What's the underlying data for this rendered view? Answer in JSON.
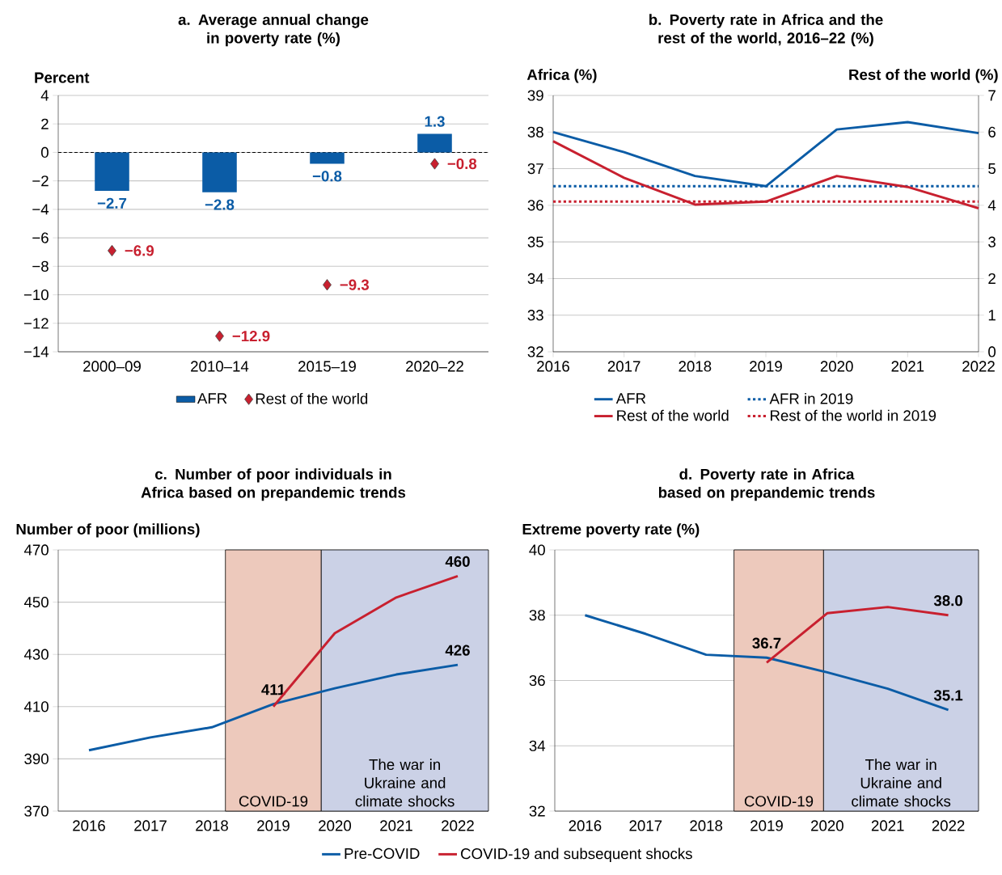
{
  "chart_data": [
    {
      "type": "bar",
      "title": "a. Average annual change in poverty rate (%)",
      "ylabel": "Percent",
      "categories": [
        "2000–09",
        "2010–14",
        "2015–19",
        "2020–22"
      ],
      "series": [
        {
          "name": "AFR",
          "color": "#0b5ca6",
          "values": [
            -2.7,
            -2.8,
            -0.8,
            1.3
          ],
          "value_labels": [
            "−2.7",
            "−2.8",
            "−0.8",
            "1.3"
          ]
        },
        {
          "name": "Rest of the world",
          "type": "scatter",
          "marker": "diamond",
          "color": "#c8202f",
          "values": [
            -6.9,
            -12.9,
            -9.3,
            -0.8
          ],
          "value_labels": [
            "−6.9",
            "−12.9",
            "−9.3",
            "−0.8"
          ]
        }
      ],
      "ylim": [
        -14,
        4
      ],
      "yticks": [
        {
          "value": -14,
          "label": "−14"
        },
        {
          "value": -12,
          "label": "−12"
        },
        {
          "value": -10,
          "label": "−10"
        },
        {
          "value": -8,
          "label": "−8"
        },
        {
          "value": -6,
          "label": "−6"
        },
        {
          "value": -4,
          "label": "−4"
        },
        {
          "value": -2,
          "label": "−2"
        },
        0,
        2,
        4
      ],
      "grid": "y",
      "legend": "bottom",
      "ref_lines": [
        {
          "axis": "y",
          "value": 0,
          "line_style": "dashed",
          "color": "#000000"
        }
      ]
    },
    {
      "type": "line",
      "title": "b. Poverty rate in Africa and the rest of the world, 2016–22 (%)",
      "ylabel": "Africa (%)",
      "y2label": "Rest of the world (%)",
      "x": [
        2016,
        2017,
        2018,
        2019,
        2020,
        2021,
        2022
      ],
      "xlim": [
        2016,
        2022
      ],
      "xticks": [
        2016,
        2017,
        2018,
        2019,
        2020,
        2021,
        2022
      ],
      "ylim": [
        32,
        39
      ],
      "yticks": [
        32,
        33,
        34,
        35,
        36,
        37,
        38,
        39
      ],
      "y2lim": [
        0,
        7
      ],
      "y2ticks": [
        0,
        1,
        2,
        3,
        4,
        5,
        6,
        7
      ],
      "grid": "y",
      "legend": "bottom",
      "series": [
        {
          "name": "AFR",
          "color": "#0b5ca6",
          "values": [
            38.0,
            37.45,
            36.8,
            36.52,
            38.07,
            38.27,
            37.97
          ]
        },
        {
          "name": "AFR in 2019",
          "color": "#0b5ca6",
          "line_style": "dotted",
          "x": [
            2016,
            2022
          ],
          "values": [
            36.52,
            36.52
          ]
        },
        {
          "name": "Rest of the world",
          "color": "#c8202f",
          "axis": "y2",
          "values": [
            5.75,
            4.75,
            4.02,
            4.1,
            4.8,
            4.5,
            3.92
          ]
        },
        {
          "name": "Rest of the world in 2019",
          "color": "#c8202f",
          "axis": "y2",
          "line_style": "dotted",
          "x": [
            2016,
            2022
          ],
          "values": [
            4.1,
            4.1
          ]
        }
      ]
    },
    {
      "type": "line",
      "title": "c. Number of poor individuals in Africa based on prepandemic trends",
      "ylabel": "Number of poor (millions)",
      "x": [
        2016,
        2017,
        2018,
        2019,
        2020,
        2021,
        2022
      ],
      "xlim": [
        2015.5,
        2022.5
      ],
      "xticks": [
        2016,
        2017,
        2018,
        2019,
        2020,
        2021,
        2022
      ],
      "ylim": [
        370,
        470
      ],
      "yticks": [
        370,
        390,
        410,
        430,
        450,
        470
      ],
      "grid": "y",
      "legend": "bottom",
      "bands": [
        {
          "axis": "x",
          "from": 2018.22,
          "to": 2019.78,
          "label": "COVID-19",
          "color": "#edc9bc"
        },
        {
          "axis": "x",
          "from": 2019.78,
          "to": 2022.5,
          "label": "The war in Ukraine and climate shocks",
          "color": "#cbd1e6"
        }
      ],
      "series": [
        {
          "name": "Pre-COVID",
          "color": "#0b5ca6",
          "values": [
            393.3,
            398.2,
            402.1,
            411,
            417,
            422.3,
            426
          ],
          "value_labels": [
            null,
            null,
            null,
            "411",
            null,
            null,
            "426"
          ]
        },
        {
          "name": "COVID-19 and subsequent shocks",
          "color": "#c8202f",
          "x": [
            2019,
            2020,
            2021,
            2022
          ],
          "values": [
            410,
            438.1,
            451.8,
            460
          ],
          "value_labels": [
            null,
            null,
            null,
            "460"
          ]
        }
      ]
    },
    {
      "type": "line",
      "title": "d. Poverty rate in Africa based on prepandemic trends",
      "ylabel": "Extreme poverty rate (%)",
      "x": [
        2016,
        2017,
        2018,
        2019,
        2020,
        2021,
        2022
      ],
      "xlim": [
        2015.5,
        2022.5
      ],
      "xticks": [
        2016,
        2017,
        2018,
        2019,
        2020,
        2021,
        2022
      ],
      "ylim": [
        32,
        40
      ],
      "yticks": [
        32,
        34,
        36,
        38,
        40
      ],
      "grid": "y",
      "bands": [
        {
          "axis": "x",
          "from": 2018.46,
          "to": 2019.94,
          "label": "COVID-19",
          "color": "#edc9bc"
        },
        {
          "axis": "x",
          "from": 2019.94,
          "to": 2022.5,
          "label": "The war in Ukraine and climate shocks",
          "color": "#cbd1e6"
        }
      ],
      "series": [
        {
          "color": "#0b5ca6",
          "values": [
            38.0,
            37.43,
            36.79,
            36.7,
            36.25,
            35.75,
            35.1
          ],
          "value_labels": [
            null,
            null,
            null,
            "36.7",
            null,
            null,
            "35.1"
          ]
        },
        {
          "color": "#c8202f",
          "x": [
            2019,
            2020,
            2021,
            2022
          ],
          "values": [
            36.55,
            38.06,
            38.25,
            38.0
          ],
          "value_labels": [
            null,
            null,
            null,
            "38.0"
          ]
        }
      ]
    }
  ]
}
